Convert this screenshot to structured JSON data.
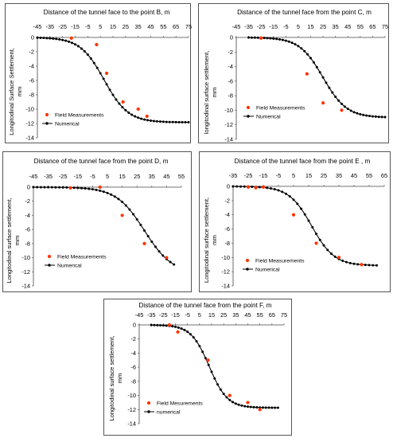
{
  "chart_data": [
    {
      "type": "scatter",
      "title": "Distance of the tunnel face to the point B, m",
      "ylabel": [
        "Longitodinal Surface Settlement,",
        "mm"
      ],
      "xticks": [
        "-45",
        "-35",
        "-25",
        "-15",
        "-5",
        "5",
        "15",
        "25",
        "35",
        "45",
        "55",
        "65",
        "75"
      ],
      "yticks": [
        "0",
        "-2",
        "-4",
        "-6",
        "-8",
        "-10",
        "-12",
        "-14"
      ],
      "xlim": [
        -45,
        75
      ],
      "ylim": [
        -14,
        0
      ],
      "legend": [
        "Field Measurements",
        "Numerical"
      ],
      "legend_position": "bottom-left",
      "series": [
        {
          "name": "Field Measurements",
          "color": "#ff3300",
          "x": [
            -18,
            2,
            10,
            23,
            35,
            42
          ],
          "y": [
            -0.1,
            -1.0,
            -5.0,
            -9.0,
            -10.0,
            -11.0
          ]
        },
        {
          "name": "Numerical",
          "color": "#000000",
          "smax": 11.85,
          "x0": 8,
          "k": 9.5,
          "xrange": [
            -45,
            75
          ]
        }
      ]
    },
    {
      "type": "scatter",
      "title": "Distance of the tunnel face from the point C, m",
      "ylabel": [
        "longitodinal surface settlement,",
        "mm"
      ],
      "xticks": [
        "-45",
        "-35",
        "-25",
        "-15",
        "-5",
        "5",
        "15",
        "25",
        "35",
        "45",
        "55",
        "65",
        "75"
      ],
      "yticks": [
        "0",
        "-2",
        "-4",
        "-6",
        "-8",
        "-10",
        "-12",
        "-14"
      ],
      "xlim": [
        -45,
        75
      ],
      "ylim": [
        -14,
        0
      ],
      "legend": [
        "Field Measurements",
        "Numerical"
      ],
      "legend_position": "bottom-left",
      "series": [
        {
          "name": "Field Measurements",
          "color": "#ff3300",
          "x": [
            -25,
            12,
            25,
            40
          ],
          "y": [
            -0.1,
            -5.0,
            -9.0,
            -10.0
          ]
        },
        {
          "name": "Numerical",
          "color": "#000000",
          "smax": 11.0,
          "x0": 25,
          "k": 9.5,
          "xrange": [
            -35,
            75
          ]
        }
      ]
    },
    {
      "type": "scatter",
      "title": "Distance of the tunnel face from the point D, m",
      "ylabel": [
        "Longitodinal surface settlement,",
        "mm"
      ],
      "xticks": [
        "-45",
        "-35",
        "-25",
        "-15",
        "-5",
        "5",
        "15",
        "25",
        "35",
        "45",
        "55"
      ],
      "yticks": [
        "0",
        "-2",
        "-4",
        "-6",
        "-8",
        "-10",
        "-12",
        "-14"
      ],
      "xlim": [
        -45,
        55
      ],
      "ylim": [
        -14,
        0
      ],
      "legend": [
        "Field Measurements",
        "Numerical"
      ],
      "legend_position": "bottom-left",
      "series": [
        {
          "name": "Field Measurements",
          "color": "#ff3300",
          "x": [
            -20,
            0,
            15,
            30,
            45
          ],
          "y": [
            -0.1,
            0,
            -4.0,
            -8.0,
            -10.0
          ]
        },
        {
          "name": "Numerical",
          "color": "#000000",
          "smax": 12.3,
          "x0": 30,
          "k": 9.5,
          "xrange": [
            -45,
            50
          ]
        }
      ]
    },
    {
      "type": "scatter",
      "title": "Distance of the tunnel face from the point E , m",
      "ylabel": [
        "Longitodinal surface settlement,",
        "mm"
      ],
      "xticks": [
        "-35",
        "-25",
        "-15",
        "-5",
        "5",
        "15",
        "25",
        "35",
        "45",
        "55",
        "65"
      ],
      "yticks": [
        "0",
        "-2",
        "-4",
        "-6",
        "-8",
        "-10",
        "-12",
        "-14"
      ],
      "xlim": [
        -35,
        65
      ],
      "ylim": [
        -14,
        0
      ],
      "legend": [
        "Field Measurements",
        "Numerical"
      ],
      "legend_position": "bottom-left",
      "series": [
        {
          "name": "Field Measurements",
          "color": "#ff3300",
          "x": [
            -25,
            -20,
            -15,
            5,
            20,
            35,
            50
          ],
          "y": [
            -0.1,
            -0.2,
            -0.1,
            -4.0,
            -8.0,
            -10.0,
            -11.0
          ]
        },
        {
          "name": "Numerical",
          "color": "#000000",
          "smax": 11.15,
          "x0": 17,
          "k": 7.5,
          "xrange": [
            -35,
            60
          ]
        }
      ]
    },
    {
      "type": "scatter",
      "title": "Distance of the tunnel face from the point F, m",
      "ylabel": [
        "Longitodinal surface settlement,",
        "mm"
      ],
      "xticks": [
        "-45",
        "-35",
        "-25",
        "-15",
        "-5",
        "5",
        "15",
        "25",
        "35",
        "45",
        "55",
        "65",
        "75"
      ],
      "yticks": [
        "0",
        "-2",
        "-4",
        "-6",
        "-8",
        "-10",
        "-12",
        "-14"
      ],
      "xlim": [
        -45,
        75
      ],
      "ylim": [
        -14,
        0
      ],
      "legend": [
        "Field Mesurements",
        "numerical"
      ],
      "legend_position": "bottom-left",
      "series": [
        {
          "name": "Field Mesurements",
          "color": "#ff3300",
          "x": [
            -20,
            -13,
            12,
            30,
            45,
            55
          ],
          "y": [
            0,
            -1.0,
            -5.0,
            -10.0,
            -11.0,
            -12.0
          ]
        },
        {
          "name": "numerical",
          "color": "#000000",
          "smax": 11.75,
          "x0": 13,
          "k": 7.5,
          "xrange": [
            -35,
            70
          ]
        }
      ]
    }
  ]
}
